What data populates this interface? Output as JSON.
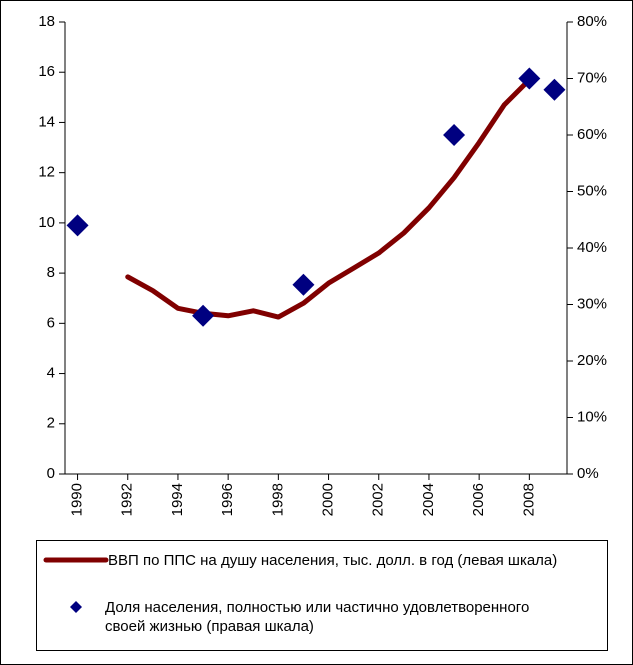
{
  "chart_data": {
    "type": "line",
    "xlim": [
      1989.5,
      2009.5
    ],
    "xticks": [
      1990,
      1992,
      1994,
      1996,
      1998,
      2000,
      2002,
      2004,
      2006,
      2008
    ],
    "ylim": [
      0,
      18
    ],
    "yticks": [
      0,
      2,
      4,
      6,
      8,
      10,
      12,
      14,
      16,
      18
    ],
    "y2lim": [
      0,
      80
    ],
    "y2ticks": [
      {
        "value": 0,
        "label": "0%"
      },
      {
        "value": 10,
        "label": "10%"
      },
      {
        "value": 20,
        "label": "20%"
      },
      {
        "value": 30,
        "label": "30%"
      },
      {
        "value": 40,
        "label": "40%"
      },
      {
        "value": 50,
        "label": "50%"
      },
      {
        "value": 60,
        "label": "60%"
      },
      {
        "value": 70,
        "label": "70%"
      },
      {
        "value": 80,
        "label": "80%"
      }
    ],
    "series": [
      {
        "name": "ВВП по ППС на душу населения, тыс. долл. в год (левая шкала)",
        "type": "line",
        "color": "#800000",
        "x": [
          1992,
          1993,
          1994,
          1995,
          1996,
          1997,
          1998,
          1999,
          2000,
          2001,
          2002,
          2003,
          2004,
          2005,
          2006,
          2007,
          2008
        ],
        "values": [
          7.85,
          7.3,
          6.6,
          6.4,
          6.3,
          6.5,
          6.25,
          6.8,
          7.6,
          8.2,
          8.8,
          9.6,
          10.6,
          11.8,
          13.2,
          14.7,
          15.7
        ]
      },
      {
        "name": "Доля населения, полностью или частично удовлетворенного своей жизнью (правая шкала)",
        "type": "scatter",
        "color": "#000080",
        "axis": "y2",
        "x": [
          1990,
          1995,
          1999,
          2005,
          2008,
          2009
        ],
        "values": [
          44,
          28,
          33.5,
          60,
          70,
          68
        ]
      }
    ]
  }
}
